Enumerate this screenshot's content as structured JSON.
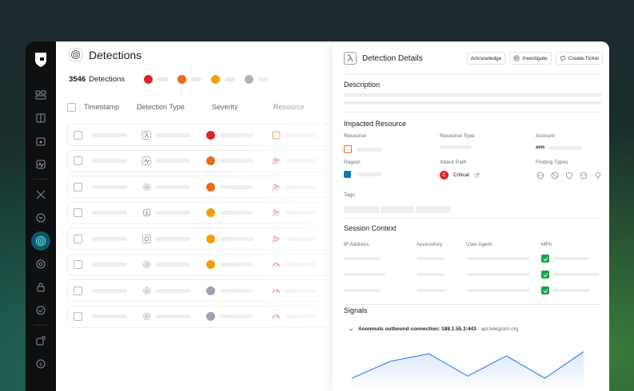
{
  "detections": {
    "title": "Detections",
    "count": "3546",
    "count_label": "Detections",
    "severity_pills": [
      {
        "color": "#dc2626"
      },
      {
        "color": "#ea6a1f"
      },
      {
        "color": "#f59e0b"
      },
      {
        "color": "#9ca3af"
      }
    ],
    "columns": [
      "Timestamp",
      "Detection Type",
      "Severity",
      "Resource"
    ],
    "rows": [
      {
        "type_icon": "lambda-icon",
        "sev_color": "#dc2626",
        "res_icon": "resource-square-icon"
      },
      {
        "type_icon": "pulse-icon",
        "sev_color": "#ea6a1f",
        "res_icon": "users-icon"
      },
      {
        "type_icon": "gear-icon",
        "sev_color": "#ea6a1f",
        "res_icon": "users-icon"
      },
      {
        "type_icon": "dollar-icon",
        "sev_color": "#f59e0b",
        "res_icon": "users-icon"
      },
      {
        "type_icon": "chip-icon",
        "sev_color": "#f59e0b",
        "res_icon": "users-icon"
      },
      {
        "type_icon": "gear-icon",
        "sev_color": "#f59e0b",
        "res_icon": "gauge-icon"
      },
      {
        "type_icon": "gear-icon",
        "sev_color": "#9ca3af",
        "res_icon": "gauge-icon"
      },
      {
        "type_icon": "gear-icon",
        "sev_color": "#9ca3af",
        "res_icon": "gauge-icon"
      }
    ]
  },
  "panel": {
    "title": "Detection Details",
    "buttons": {
      "acknowledge": "Acknowledge",
      "investigate": "Investigate",
      "create_ticket": "Create Ticket"
    },
    "description_title": "Description",
    "impacted_title": "Impacted Resource",
    "labels": {
      "resource": "Resource",
      "resource_type": "Resource Type",
      "account": "Account",
      "region": "Region",
      "attack_path": "Attack Path",
      "finding_types": "Finding Types",
      "tags": "Tags"
    },
    "account_provider": "aws",
    "attack_path_badge": "C",
    "attack_path_value": "Critical",
    "session_title": "Session Context",
    "session_columns": [
      "IP Address",
      "AccessKey",
      "User Agent",
      "MFA"
    ],
    "signals_title": "Signals",
    "signal": {
      "label": "Anomouls outbound connection:",
      "ip": "188.1.55.3:443",
      "host": "api.telegram.org"
    }
  },
  "colors": {
    "accent": "#0a5a6e",
    "chart_line": "#3b82f6",
    "mfa_green": "#16a34a",
    "critical": "#dc2626"
  },
  "chart_data": {
    "type": "area",
    "x": [
      0,
      1,
      2,
      3,
      4,
      5,
      6
    ],
    "values": [
      12,
      28,
      35,
      14,
      33,
      12,
      37
    ],
    "title": "",
    "xlabel": "",
    "ylabel": "",
    "grid": false
  }
}
